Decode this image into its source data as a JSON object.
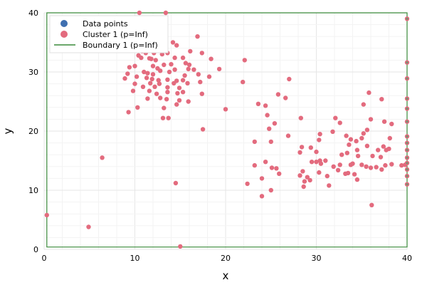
{
  "chart_data": {
    "type": "scatter",
    "title": "",
    "xlabel": "x",
    "ylabel": "y",
    "xlim": [
      0,
      40
    ],
    "ylim": [
      0,
      40
    ],
    "xticks": [
      "0",
      "10",
      "20",
      "30",
      "40"
    ],
    "yticks": [
      "0",
      "10",
      "20",
      "30",
      "40"
    ],
    "grid": true,
    "legend_position": "top-left",
    "legend": [
      {
        "label": "Data points",
        "kind": "marker",
        "color": "#3f6fb0"
      },
      {
        "label": "Cluster 1 (p=Inf)",
        "kind": "marker",
        "color": "#e36b7e"
      },
      {
        "label": "Boundary 1 (p=Inf)",
        "kind": "line",
        "color": "#3a8a3a"
      }
    ],
    "series": [
      {
        "name": "Cluster 1 (p=Inf)",
        "color": "#e36b7e",
        "points": [
          [
            10.5,
            40.0
          ],
          [
            13.4,
            40.0
          ],
          [
            16.9,
            36.0
          ],
          [
            14.2,
            35.0
          ],
          [
            12.6,
            34.2
          ],
          [
            11.6,
            34.0
          ],
          [
            10.8,
            33.5
          ],
          [
            11.2,
            33.2
          ],
          [
            12.1,
            33.2
          ],
          [
            13.6,
            33.2
          ],
          [
            14.6,
            34.5
          ],
          [
            13.0,
            33.0
          ],
          [
            16.1,
            33.5
          ],
          [
            17.4,
            33.2
          ],
          [
            10.4,
            32.8
          ],
          [
            10.7,
            32.4
          ],
          [
            11.6,
            32.3
          ],
          [
            11.8,
            32.2
          ],
          [
            12.3,
            32.0
          ],
          [
            14.4,
            32.4
          ],
          [
            15.3,
            32.4
          ],
          [
            18.4,
            32.2
          ],
          [
            15.6,
            31.5
          ],
          [
            16.0,
            31.2
          ],
          [
            10.0,
            31.0
          ],
          [
            12.0,
            31.0
          ],
          [
            12.5,
            30.6
          ],
          [
            13.2,
            31.2
          ],
          [
            14.0,
            31.3
          ],
          [
            14.4,
            30.4
          ],
          [
            15.9,
            30.5
          ],
          [
            16.5,
            30.4
          ],
          [
            9.4,
            30.8
          ],
          [
            9.2,
            29.7
          ],
          [
            11.0,
            30.0
          ],
          [
            11.4,
            29.8
          ],
          [
            12.0,
            29.6
          ],
          [
            12.8,
            30.2
          ],
          [
            13.8,
            30.0
          ],
          [
            15.5,
            29.4
          ],
          [
            17.0,
            29.6
          ],
          [
            18.2,
            29.2
          ],
          [
            19.3,
            30.5
          ],
          [
            8.9,
            28.9
          ],
          [
            10.2,
            29.2
          ],
          [
            11.3,
            29.0
          ],
          [
            11.9,
            28.8
          ],
          [
            12.6,
            28.6
          ],
          [
            13.6,
            28.7
          ],
          [
            14.6,
            28.5
          ],
          [
            15.3,
            28.6
          ],
          [
            15.8,
            28.1
          ],
          [
            10.0,
            28.0
          ],
          [
            11.7,
            28.1
          ],
          [
            12.7,
            28.0
          ],
          [
            14.3,
            28.1
          ],
          [
            17.2,
            28.3
          ],
          [
            10.9,
            27.5
          ],
          [
            12.2,
            27.5
          ],
          [
            13.6,
            27.4
          ],
          [
            14.9,
            27.3
          ],
          [
            9.8,
            26.8
          ],
          [
            11.6,
            26.8
          ],
          [
            12.4,
            26.3
          ],
          [
            13.6,
            26.6
          ],
          [
            14.7,
            26.4
          ],
          [
            15.3,
            26.6
          ],
          [
            17.4,
            26.3
          ],
          [
            11.4,
            25.5
          ],
          [
            12.8,
            25.6
          ],
          [
            13.5,
            25.4
          ],
          [
            14.9,
            25.2
          ],
          [
            15.9,
            25.0
          ],
          [
            14.6,
            24.5
          ],
          [
            10.3,
            24.0
          ],
          [
            13.2,
            23.9
          ],
          [
            9.3,
            23.2
          ],
          [
            13.1,
            22.2
          ],
          [
            13.7,
            22.2
          ],
          [
            17.5,
            20.3
          ],
          [
            20.0,
            23.7
          ],
          [
            21.9,
            28.3
          ],
          [
            22.1,
            32.0
          ],
          [
            27.0,
            28.8
          ],
          [
            25.8,
            26.2
          ],
          [
            26.6,
            25.6
          ],
          [
            23.6,
            24.6
          ],
          [
            24.4,
            24.3
          ],
          [
            24.6,
            22.7
          ],
          [
            25.4,
            21.3
          ],
          [
            24.8,
            20.4
          ],
          [
            26.9,
            19.2
          ],
          [
            23.2,
            18.2
          ],
          [
            25.0,
            18.2
          ],
          [
            28.3,
            22.2
          ],
          [
            28.4,
            17.3
          ],
          [
            28.2,
            16.4
          ],
          [
            29.4,
            17.2
          ],
          [
            30.4,
            19.5
          ],
          [
            30.3,
            18.5
          ],
          [
            31.8,
            19.9
          ],
          [
            32.1,
            22.2
          ],
          [
            32.6,
            21.4
          ],
          [
            33.3,
            19.2
          ],
          [
            33.8,
            18.6
          ],
          [
            33.6,
            17.7
          ],
          [
            34.4,
            18.3
          ],
          [
            34.5,
            16.8
          ],
          [
            35.2,
            19.6
          ],
          [
            35.0,
            18.8
          ],
          [
            35.6,
            20.2
          ],
          [
            35.2,
            24.5
          ],
          [
            35.8,
            26.5
          ],
          [
            36.0,
            22.0
          ],
          [
            37.2,
            25.4
          ],
          [
            37.5,
            21.6
          ],
          [
            38.3,
            21.2
          ],
          [
            38.1,
            18.8
          ],
          [
            37.4,
            17.4
          ],
          [
            37.7,
            16.8
          ],
          [
            38.0,
            17.0
          ],
          [
            36.8,
            16.8
          ],
          [
            36.2,
            15.8
          ],
          [
            35.6,
            17.5
          ],
          [
            34.6,
            15.8
          ],
          [
            33.8,
            14.3
          ],
          [
            33.4,
            16.3
          ],
          [
            32.8,
            16.0
          ],
          [
            32.4,
            13.4
          ],
          [
            31.9,
            14.0
          ],
          [
            31.0,
            15.0
          ],
          [
            30.5,
            14.5
          ],
          [
            30.4,
            15.0
          ],
          [
            30.0,
            16.5
          ],
          [
            30.0,
            14.8
          ],
          [
            30.3,
            13.0
          ],
          [
            29.5,
            14.8
          ],
          [
            28.5,
            13.2
          ],
          [
            28.2,
            12.5
          ],
          [
            28.7,
            11.5
          ],
          [
            29.0,
            12.2
          ],
          [
            28.6,
            10.6
          ],
          [
            29.3,
            11.7
          ],
          [
            31.4,
            10.8
          ],
          [
            31.2,
            12.4
          ],
          [
            32.6,
            14.3
          ],
          [
            33.2,
            12.8
          ],
          [
            33.5,
            12.9
          ],
          [
            34.0,
            14.5
          ],
          [
            34.2,
            12.7
          ],
          [
            34.5,
            11.8
          ],
          [
            35.0,
            14.3
          ],
          [
            35.5,
            14.0
          ],
          [
            36.0,
            13.8
          ],
          [
            36.6,
            13.9
          ],
          [
            37.1,
            15.6
          ],
          [
            37.6,
            14.2
          ],
          [
            38.3,
            14.4
          ],
          [
            39.4,
            14.2
          ],
          [
            39.8,
            14.3
          ],
          [
            37.2,
            13.5
          ],
          [
            36.1,
            7.5
          ],
          [
            23.2,
            14.2
          ],
          [
            24.0,
            12.0
          ],
          [
            24.4,
            14.8
          ],
          [
            25.1,
            13.8
          ],
          [
            25.6,
            13.7
          ],
          [
            25.9,
            12.8
          ],
          [
            25.0,
            10.0
          ],
          [
            24.0,
            9.0
          ],
          [
            22.4,
            11.1
          ],
          [
            14.5,
            11.2
          ],
          [
            6.4,
            15.5
          ],
          [
            4.9,
            3.8
          ],
          [
            0.3,
            5.8
          ],
          [
            15.0,
            0.5
          ]
        ]
      }
    ],
    "boundary": {
      "name": "Boundary 1 (p=Inf)",
      "color": "#3a8a3a",
      "corners": [
        [
          0.3,
          0.4
        ],
        [
          40.0,
          0.4
        ],
        [
          40.0,
          40.0
        ],
        [
          0.3,
          40.0
        ]
      ]
    },
    "boundary_points": {
      "color": "#5a9a6e",
      "points": [
        [
          40.0,
          39.0
        ],
        [
          40.0,
          31.6
        ],
        [
          40.0,
          28.9
        ],
        [
          40.0,
          25.5
        ],
        [
          40.0,
          23.8
        ],
        [
          40.0,
          21.6
        ],
        [
          40.0,
          19.1
        ],
        [
          40.0,
          18.0
        ],
        [
          40.0,
          16.8
        ],
        [
          40.0,
          15.5
        ],
        [
          40.0,
          14.6
        ],
        [
          40.0,
          13.5
        ],
        [
          40.0,
          12.4
        ],
        [
          40.0,
          11.0
        ]
      ]
    }
  }
}
